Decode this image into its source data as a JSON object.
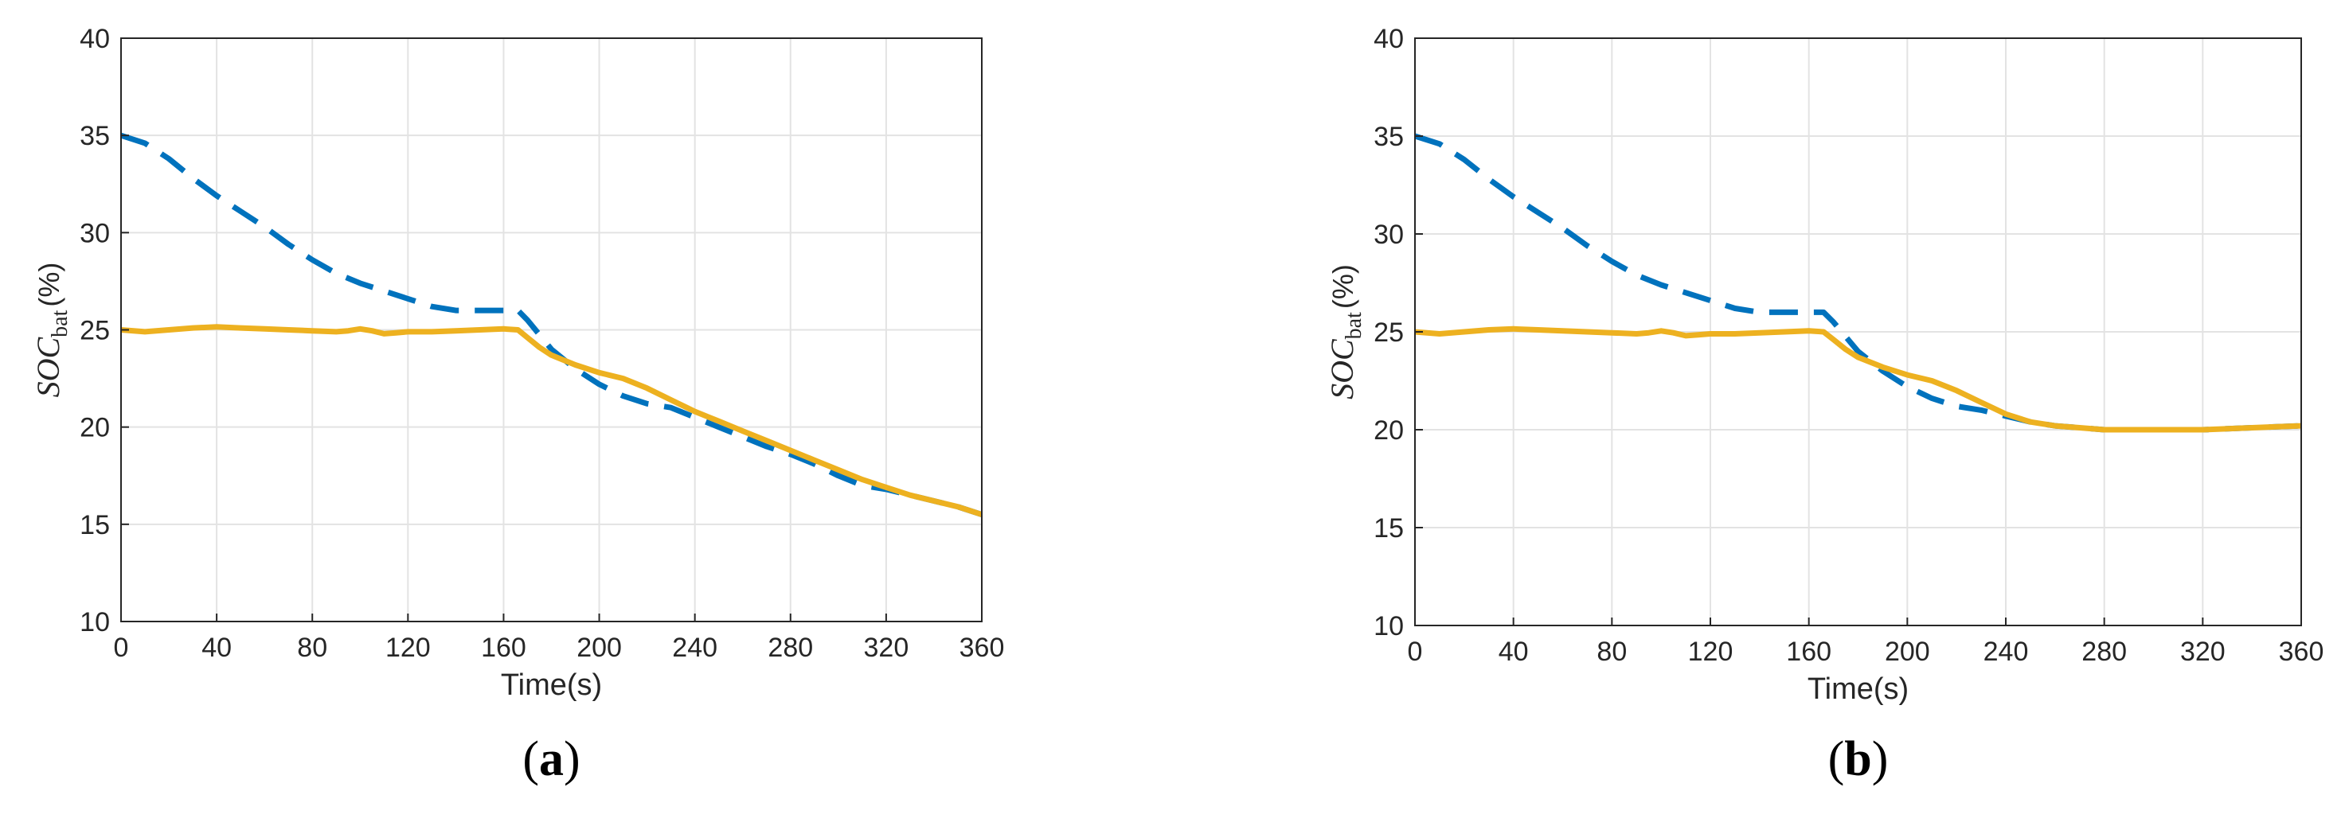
{
  "colors": {
    "series_solid": "#EDB120",
    "series_dashed": "#0072BD"
  },
  "chart_data": [
    {
      "type": "line",
      "caption": {
        "open": "(",
        "letter": "a",
        "close": ")"
      },
      "xlabel": "Time(s)",
      "ylabel": {
        "main": "SOC",
        "sub": "bat",
        "unit": "(%)"
      },
      "xlim": [
        0,
        360
      ],
      "ylim": [
        10,
        40
      ],
      "xticks": [
        0,
        40,
        80,
        120,
        160,
        200,
        240,
        280,
        320,
        360
      ],
      "yticks": [
        10,
        15,
        20,
        25,
        30,
        35,
        40
      ],
      "grid": true,
      "series": [
        {
          "style": "dashed",
          "color": "#0072BD",
          "points": [
            [
              0,
              35
            ],
            [
              10,
              34.6
            ],
            [
              20,
              33.8
            ],
            [
              30,
              32.8
            ],
            [
              40,
              31.9
            ],
            [
              50,
              31.1
            ],
            [
              60,
              30.3
            ],
            [
              70,
              29.4
            ],
            [
              80,
              28.6
            ],
            [
              90,
              27.9
            ],
            [
              100,
              27.4
            ],
            [
              110,
              27.0
            ],
            [
              120,
              26.6
            ],
            [
              130,
              26.2
            ],
            [
              140,
              26.0
            ],
            [
              150,
              26.0
            ],
            [
              160,
              26.0
            ],
            [
              166,
              26.0
            ],
            [
              170,
              25.5
            ],
            [
              180,
              24.0
            ],
            [
              190,
              23.0
            ],
            [
              200,
              22.2
            ],
            [
              210,
              21.6
            ],
            [
              220,
              21.2
            ],
            [
              230,
              21.0
            ],
            [
              240,
              20.5
            ],
            [
              250,
              20.0
            ],
            [
              260,
              19.5
            ],
            [
              270,
              19.0
            ],
            [
              280,
              18.6
            ],
            [
              290,
              18.1
            ],
            [
              300,
              17.5
            ],
            [
              310,
              17.0
            ],
            [
              320,
              16.8
            ],
            [
              330,
              16.5
            ],
            [
              340,
              16.2
            ],
            [
              350,
              15.9
            ],
            [
              360,
              15.5
            ]
          ]
        },
        {
          "style": "solid",
          "color": "#EDB120",
          "points": [
            [
              0,
              25.0
            ],
            [
              10,
              24.9
            ],
            [
              20,
              25.0
            ],
            [
              30,
              25.1
            ],
            [
              40,
              25.15
            ],
            [
              50,
              25.1
            ],
            [
              60,
              25.05
            ],
            [
              70,
              25.0
            ],
            [
              80,
              24.95
            ],
            [
              90,
              24.9
            ],
            [
              95,
              24.95
            ],
            [
              100,
              25.05
            ],
            [
              105,
              24.95
            ],
            [
              110,
              24.8
            ],
            [
              115,
              24.85
            ],
            [
              120,
              24.9
            ],
            [
              130,
              24.9
            ],
            [
              140,
              24.95
            ],
            [
              150,
              25.0
            ],
            [
              160,
              25.05
            ],
            [
              166,
              25.0
            ],
            [
              170,
              24.6
            ],
            [
              175,
              24.1
            ],
            [
              180,
              23.7
            ],
            [
              190,
              23.2
            ],
            [
              200,
              22.8
            ],
            [
              210,
              22.5
            ],
            [
              220,
              22.0
            ],
            [
              230,
              21.4
            ],
            [
              240,
              20.8
            ],
            [
              250,
              20.3
            ],
            [
              260,
              19.8
            ],
            [
              270,
              19.3
            ],
            [
              280,
              18.8
            ],
            [
              290,
              18.3
            ],
            [
              300,
              17.8
            ],
            [
              310,
              17.3
            ],
            [
              320,
              16.9
            ],
            [
              330,
              16.5
            ],
            [
              340,
              16.2
            ],
            [
              350,
              15.9
            ],
            [
              360,
              15.5
            ]
          ]
        }
      ]
    },
    {
      "type": "line",
      "caption": {
        "open": "(",
        "letter": "b",
        "close": ")"
      },
      "xlabel": "Time(s)",
      "ylabel": {
        "main": "SOC",
        "sub": "bat",
        "unit": "(%)"
      },
      "xlim": [
        0,
        360
      ],
      "ylim": [
        10,
        40
      ],
      "xticks": [
        0,
        40,
        80,
        120,
        160,
        200,
        240,
        280,
        320,
        360
      ],
      "yticks": [
        10,
        15,
        20,
        25,
        30,
        35,
        40
      ],
      "grid": true,
      "series": [
        {
          "style": "dashed",
          "color": "#0072BD",
          "points": [
            [
              0,
              35
            ],
            [
              10,
              34.6
            ],
            [
              20,
              33.8
            ],
            [
              30,
              32.8
            ],
            [
              40,
              31.9
            ],
            [
              50,
              31.1
            ],
            [
              60,
              30.3
            ],
            [
              70,
              29.4
            ],
            [
              80,
              28.6
            ],
            [
              90,
              27.9
            ],
            [
              100,
              27.4
            ],
            [
              110,
              27.0
            ],
            [
              120,
              26.6
            ],
            [
              130,
              26.2
            ],
            [
              140,
              26.0
            ],
            [
              150,
              26.0
            ],
            [
              160,
              26.0
            ],
            [
              166,
              26.0
            ],
            [
              170,
              25.5
            ],
            [
              180,
              24.0
            ],
            [
              190,
              23.0
            ],
            [
              200,
              22.2
            ],
            [
              210,
              21.6
            ],
            [
              220,
              21.2
            ],
            [
              230,
              21.0
            ],
            [
              240,
              20.7
            ],
            [
              250,
              20.4
            ],
            [
              260,
              20.2
            ],
            [
              270,
              20.1
            ],
            [
              280,
              20.0
            ],
            [
              290,
              20.0
            ],
            [
              300,
              20.0
            ],
            [
              310,
              20.0
            ],
            [
              320,
              20.0
            ],
            [
              330,
              20.05
            ],
            [
              340,
              20.1
            ],
            [
              350,
              20.15
            ],
            [
              360,
              20.2
            ]
          ]
        },
        {
          "style": "solid",
          "color": "#EDB120",
          "points": [
            [
              0,
              25.0
            ],
            [
              10,
              24.9
            ],
            [
              20,
              25.0
            ],
            [
              30,
              25.1
            ],
            [
              40,
              25.15
            ],
            [
              50,
              25.1
            ],
            [
              60,
              25.05
            ],
            [
              70,
              25.0
            ],
            [
              80,
              24.95
            ],
            [
              90,
              24.9
            ],
            [
              95,
              24.95
            ],
            [
              100,
              25.05
            ],
            [
              105,
              24.95
            ],
            [
              110,
              24.8
            ],
            [
              115,
              24.85
            ],
            [
              120,
              24.9
            ],
            [
              130,
              24.9
            ],
            [
              140,
              24.95
            ],
            [
              150,
              25.0
            ],
            [
              160,
              25.05
            ],
            [
              166,
              25.0
            ],
            [
              170,
              24.6
            ],
            [
              175,
              24.1
            ],
            [
              180,
              23.7
            ],
            [
              190,
              23.2
            ],
            [
              200,
              22.8
            ],
            [
              210,
              22.5
            ],
            [
              220,
              22.0
            ],
            [
              230,
              21.4
            ],
            [
              240,
              20.8
            ],
            [
              250,
              20.4
            ],
            [
              260,
              20.2
            ],
            [
              270,
              20.1
            ],
            [
              280,
              20.0
            ],
            [
              290,
              20.0
            ],
            [
              300,
              20.0
            ],
            [
              310,
              20.0
            ],
            [
              320,
              20.0
            ],
            [
              330,
              20.05
            ],
            [
              340,
              20.1
            ],
            [
              350,
              20.15
            ],
            [
              360,
              20.2
            ]
          ]
        }
      ]
    }
  ]
}
